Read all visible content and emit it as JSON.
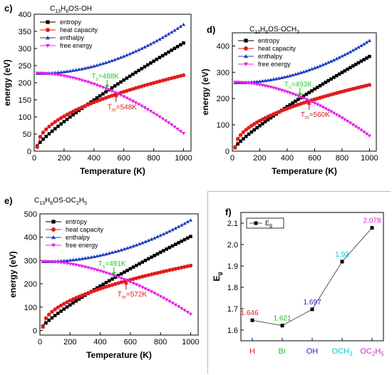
{
  "chart_data": [
    {
      "type": "line",
      "panel_label": "c)",
      "formula": {
        "main": "C",
        "sub1": "13",
        "mid": "H",
        "sub2": "8",
        "tail": "OS-OH"
      },
      "xlabel": "Temperature (K)",
      "ylabel": "energy (eV)",
      "xlim": [
        0,
        1050
      ],
      "ylim": [
        0,
        400
      ],
      "xticks": [
        0,
        200,
        400,
        600,
        800,
        1000
      ],
      "yticks": [
        0,
        50,
        100,
        150,
        200,
        250,
        300,
        350,
        400
      ],
      "legend_position": "top-left",
      "series": [
        {
          "name": "entropy",
          "color": "#000000",
          "marker": "square",
          "start": 15,
          "end": 316,
          "curve": 0.85
        },
        {
          "name": "heat capacity",
          "color": "#e31a1c",
          "marker": "circle",
          "start": 12,
          "end": 222,
          "curve": 0.5
        },
        {
          "name": "enthalpy",
          "color": "#1f3cc4",
          "marker": "triangle-up",
          "start": 227,
          "end": 370,
          "curve": 2.0
        },
        {
          "name": "free energy",
          "color": "#e81fe8",
          "marker": "triangle-down",
          "start": 228,
          "end": 52,
          "curve": 1.8
        }
      ],
      "annotations": [
        {
          "text_main": "T",
          "text_sub": "s",
          "text_tail": "=488K",
          "color": "#22cc22",
          "x": 488,
          "y": 183
        },
        {
          "text_main": "T",
          "text_sub": "m",
          "text_tail": "=548K",
          "color": "#d42020",
          "x": 548,
          "y": 168
        }
      ]
    },
    {
      "type": "line",
      "panel_label": "d)",
      "formula": {
        "main": "C",
        "sub1": "13",
        "mid": "H",
        "sub2": "8",
        "tail": "OS-OCH",
        "sub3": "3"
      },
      "xlabel": "Temperature (K)",
      "ylabel": "energy (eV)",
      "xlim": [
        0,
        1050
      ],
      "ylim": [
        0,
        450
      ],
      "xticks": [
        0,
        200,
        400,
        600,
        800,
        1000
      ],
      "yticks": [
        0,
        100,
        200,
        300,
        400
      ],
      "legend_position": "top-left",
      "series": [
        {
          "name": "entropy",
          "color": "#000000",
          "marker": "square",
          "start": 15,
          "end": 360,
          "curve": 0.85
        },
        {
          "name": "heat capacity",
          "color": "#e31a1c",
          "marker": "circle",
          "start": 13,
          "end": 252,
          "curve": 0.5
        },
        {
          "name": "enthalpy",
          "color": "#1f3cc4",
          "marker": "triangle-up",
          "start": 260,
          "end": 420,
          "curve": 2.0
        },
        {
          "name": "free energy",
          "color": "#e81fe8",
          "marker": "triangle-down",
          "start": 262,
          "end": 58,
          "curve": 1.8
        }
      ],
      "annotations": [
        {
          "text_main": "T",
          "text_sub": "s",
          "text_tail": "=493K",
          "color": "#22cc22",
          "x": 493,
          "y": 208
        },
        {
          "text_main": "T",
          "text_sub": "m",
          "text_tail": "=560K",
          "color": "#d42020",
          "x": 560,
          "y": 190
        }
      ]
    },
    {
      "type": "line",
      "panel_label": "e)",
      "formula": {
        "main": "C",
        "sub1": "13",
        "mid": "H",
        "sub2": "8",
        "tail": "OS-OC",
        "sub3": "2",
        "tail2": "H",
        "sub4": "5"
      },
      "xlabel": "Temperature (K)",
      "ylabel": "energy (eV)",
      "xlim": [
        0,
        1050
      ],
      "ylim": [
        -20,
        500
      ],
      "xticks": [
        0,
        200,
        400,
        600,
        800,
        1000
      ],
      "yticks": [
        0,
        100,
        200,
        300,
        400,
        500
      ],
      "legend_position": "top-left",
      "series": [
        {
          "name": "entropy",
          "color": "#000000",
          "marker": "square",
          "start": 18,
          "end": 403,
          "curve": 0.85
        },
        {
          "name": "heat capacity",
          "color": "#e31a1c",
          "marker": "circle",
          "start": 15,
          "end": 278,
          "curve": 0.5
        },
        {
          "name": "enthalpy",
          "color": "#1f3cc4",
          "marker": "triangle-up",
          "start": 295,
          "end": 473,
          "curve": 2.0
        },
        {
          "name": "free energy",
          "color": "#e81fe8",
          "marker": "triangle-down",
          "start": 296,
          "end": 70,
          "curve": 1.8
        }
      ],
      "annotations": [
        {
          "text_main": "T",
          "text_sub": "s",
          "text_tail": "=491K",
          "color": "#22cc22",
          "x": 491,
          "y": 234
        },
        {
          "text_main": "T",
          "text_sub": "m",
          "text_tail": "=572K",
          "color": "#d42020",
          "x": 572,
          "y": 212
        }
      ]
    },
    {
      "type": "line",
      "panel_label": "f)",
      "ylabel": "E",
      "ylabel_sub": "g",
      "ylim": [
        1.55,
        2.15
      ],
      "yticks": [
        1.6,
        1.7,
        1.8,
        1.9,
        2.0,
        2.1
      ],
      "legend_entry": {
        "main": "E",
        "sub": "g"
      },
      "categories": [
        {
          "label": "H",
          "color": "#e31a1c"
        },
        {
          "label": "Br",
          "color": "#22bb22"
        },
        {
          "label": "OH",
          "color": "#1f1fbf"
        },
        {
          "label_main": "OCH",
          "label_sub": "3",
          "color": "#00c8d8"
        },
        {
          "label_main": "OC",
          "label_sub": "2",
          "label_mid": "H",
          "label_sub2": "5",
          "color": "#d81fd8"
        }
      ],
      "values": [
        1.646,
        1.621,
        1.697,
        1.92,
        2.078
      ],
      "value_labels": [
        "1.646",
        "1.621",
        "1.697",
        "1.92",
        "2.078"
      ],
      "value_label_colors": [
        "#e31a1c",
        "#22bb22",
        "#1f1fbf",
        "#00c8d8",
        "#d81fd8"
      ],
      "line_color": "#555555"
    }
  ]
}
